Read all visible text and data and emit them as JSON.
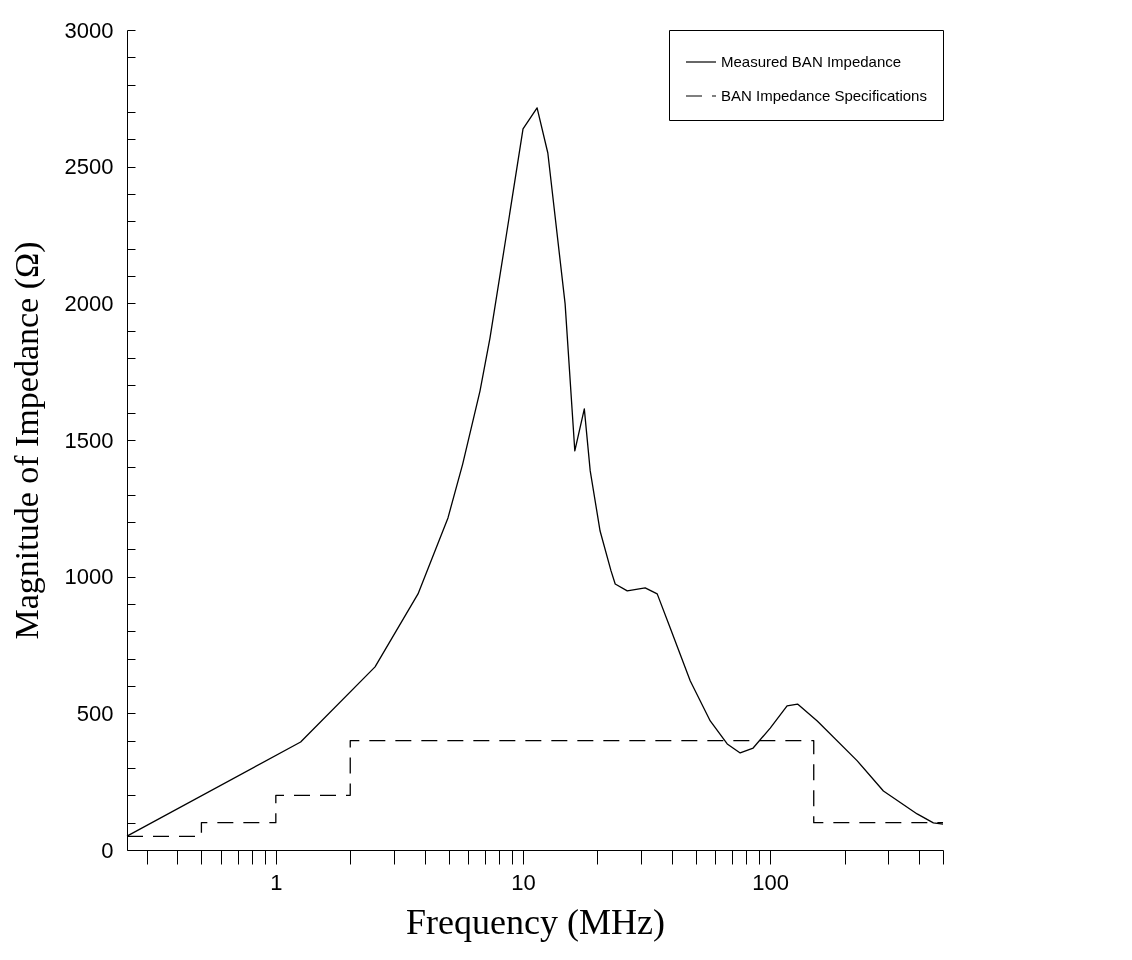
{
  "chart_data": {
    "type": "line",
    "xlabel": "Frequency (MHz)",
    "ylabel": "Magnitude of Impedance (Ω)",
    "log": "x",
    "legend": "top right",
    "grid": false,
    "marker": "none",
    "xlim": [
      0.25,
      500
    ],
    "ylim": [
      0,
      3000
    ],
    "xticks": [
      {
        "value": 0.3,
        "label": null
      },
      {
        "value": 0.4,
        "label": null
      },
      {
        "value": 0.5,
        "label": null
      },
      {
        "value": 0.6,
        "label": null
      },
      {
        "value": 0.7,
        "label": null
      },
      {
        "value": 0.8,
        "label": null
      },
      {
        "value": 0.9,
        "label": null
      },
      1,
      {
        "value": 2,
        "label": null
      },
      {
        "value": 3,
        "label": null
      },
      {
        "value": 4,
        "label": null
      },
      {
        "value": 5,
        "label": null
      },
      {
        "value": 6,
        "label": null
      },
      {
        "value": 7,
        "label": null
      },
      {
        "value": 8,
        "label": null
      },
      {
        "value": 9,
        "label": null
      },
      10,
      {
        "value": 20,
        "label": null
      },
      {
        "value": 30,
        "label": null
      },
      {
        "value": 40,
        "label": null
      },
      {
        "value": 50,
        "label": null
      },
      {
        "value": 60,
        "label": null
      },
      {
        "value": 70,
        "label": null
      },
      {
        "value": 80,
        "label": null
      },
      {
        "value": 90,
        "label": null
      },
      100,
      {
        "value": 200,
        "label": null
      },
      {
        "value": 300,
        "label": null
      },
      {
        "value": 400,
        "label": null
      },
      {
        "value": 500,
        "label": null
      }
    ],
    "yticks": [
      0,
      {
        "value": 100,
        "label": null
      },
      {
        "value": 200,
        "label": null
      },
      {
        "value": 300,
        "label": null
      },
      {
        "value": 400,
        "label": null
      },
      500,
      {
        "value": 600,
        "label": null
      },
      {
        "value": 700,
        "label": null
      },
      {
        "value": 800,
        "label": null
      },
      {
        "value": 900,
        "label": null
      },
      1000,
      {
        "value": 1100,
        "label": null
      },
      {
        "value": 1200,
        "label": null
      },
      {
        "value": 1300,
        "label": null
      },
      {
        "value": 1400,
        "label": null
      },
      1500,
      {
        "value": 1600,
        "label": null
      },
      {
        "value": 1700,
        "label": null
      },
      {
        "value": 1800,
        "label": null
      },
      {
        "value": 1900,
        "label": null
      },
      2000,
      {
        "value": 2100,
        "label": null
      },
      {
        "value": 2200,
        "label": null
      },
      {
        "value": 2300,
        "label": null
      },
      {
        "value": 2400,
        "label": null
      },
      2500,
      {
        "value": 2600,
        "label": null
      },
      {
        "value": 2700,
        "label": null
      },
      {
        "value": 2800,
        "label": null
      },
      {
        "value": 2900,
        "label": null
      },
      3000
    ],
    "series": [
      {
        "name": "Measured BAN Impedance",
        "color": "#000000",
        "line_style": "solid",
        "x": [
          0.25,
          1.26,
          2.52,
          3.76,
          4.97,
          5.7,
          6.7,
          7.35,
          8.45,
          10,
          11.4,
          12.6,
          14.8,
          16.2,
          17.7,
          18.7,
          20.5,
          22.7,
          23.6,
          26.4,
          31.2,
          34.9,
          39.4,
          47.5,
          57.2,
          67,
          75.6,
          85.3,
          100,
          117,
          129,
          155,
          225,
          287,
          393,
          457,
          500
        ],
        "values": [
          51,
          395,
          670,
          937,
          1215,
          1412,
          1680,
          1873,
          2217,
          2638,
          2715,
          2550,
          1998,
          1460,
          1614,
          1387,
          1167,
          1021,
          973,
          948,
          959,
          937,
          812,
          618,
          472,
          388,
          355,
          373,
          446,
          527,
          534,
          472,
          326,
          216,
          132,
          99,
          95
        ]
      },
      {
        "name": "BAN Impedance Specifications",
        "type": "step",
        "color": "#000000",
        "line_style": "dashed",
        "x": [
          0.25,
          0.5,
          1,
          2,
          150,
          500
        ],
        "values": [
          50,
          100,
          200,
          400,
          100,
          100
        ]
      }
    ]
  }
}
